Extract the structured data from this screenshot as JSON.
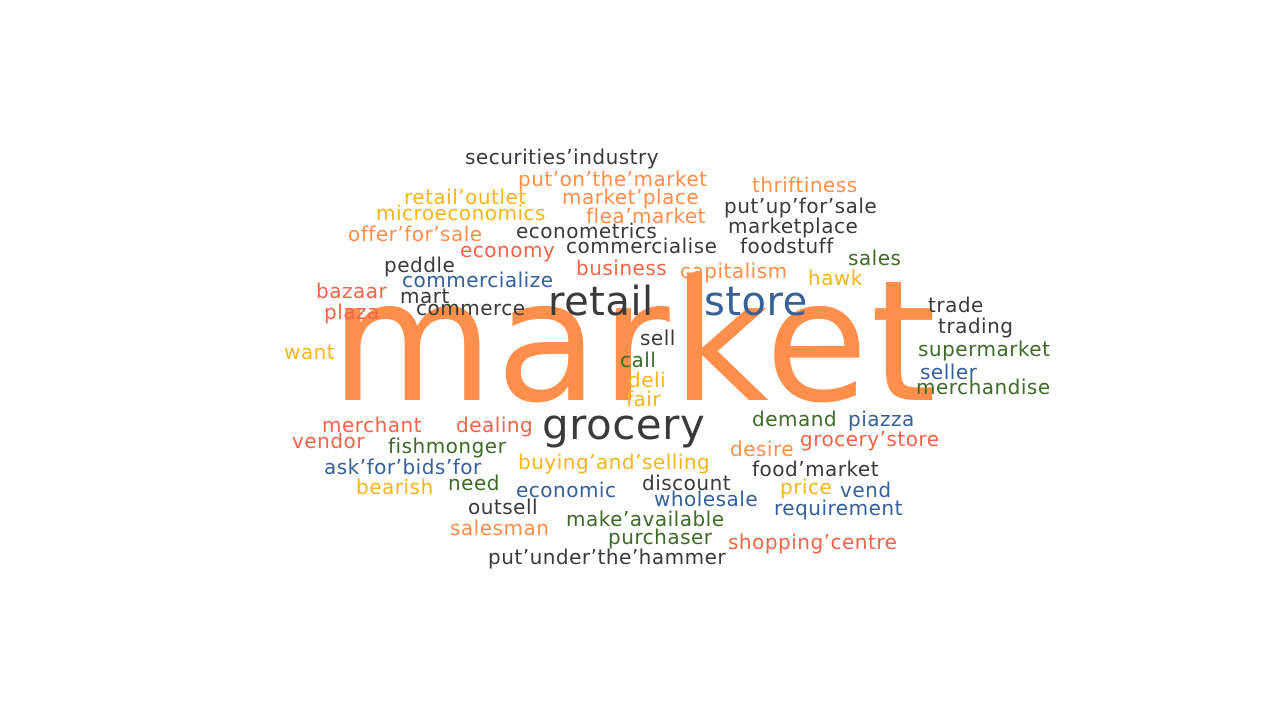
{
  "palette": {
    "orange": "#FF8F4A",
    "red": "#F26449",
    "yellow": "#F5B51F",
    "green": "#3F6B28",
    "blue": "#36609A",
    "dark": "#3A3A3A"
  },
  "words": [
    {
      "text": "market",
      "color": "orange"
    },
    {
      "text": "retail",
      "color": "dark"
    },
    {
      "text": "store",
      "color": "blue"
    },
    {
      "text": "grocery",
      "color": "dark"
    },
    {
      "text": "securities’industry",
      "color": "dark"
    },
    {
      "text": "put’on’the’market",
      "color": "orange"
    },
    {
      "text": "thriftiness",
      "color": "orange"
    },
    {
      "text": "retail’outlet",
      "color": "yellow"
    },
    {
      "text": "market’place",
      "color": "orange"
    },
    {
      "text": "microeconomics",
      "color": "yellow"
    },
    {
      "text": "flea’market",
      "color": "orange"
    },
    {
      "text": "put’up’for’sale",
      "color": "dark"
    },
    {
      "text": "offer’for’sale",
      "color": "orange"
    },
    {
      "text": "econometrics",
      "color": "dark"
    },
    {
      "text": "marketplace",
      "color": "dark"
    },
    {
      "text": "economy",
      "color": "red"
    },
    {
      "text": "commercialise",
      "color": "dark"
    },
    {
      "text": "foodstuff",
      "color": "dark"
    },
    {
      "text": "peddle",
      "color": "dark"
    },
    {
      "text": "sales",
      "color": "green"
    },
    {
      "text": "commercialize",
      "color": "blue"
    },
    {
      "text": "business",
      "color": "red"
    },
    {
      "text": "capitalism",
      "color": "orange"
    },
    {
      "text": "hawk",
      "color": "yellow"
    },
    {
      "text": "bazaar",
      "color": "red"
    },
    {
      "text": "mart",
      "color": "dark"
    },
    {
      "text": "commerce",
      "color": "dark"
    },
    {
      "text": "plaza",
      "color": "red"
    },
    {
      "text": "trade",
      "color": "dark"
    },
    {
      "text": "trading",
      "color": "dark"
    },
    {
      "text": "sell",
      "color": "dark"
    },
    {
      "text": "want",
      "color": "yellow"
    },
    {
      "text": "call",
      "color": "green"
    },
    {
      "text": "supermarket",
      "color": "green"
    },
    {
      "text": "deli",
      "color": "yellow"
    },
    {
      "text": "seller",
      "color": "blue"
    },
    {
      "text": "merchandise",
      "color": "green"
    },
    {
      "text": "fair",
      "color": "yellow"
    },
    {
      "text": "demand",
      "color": "green"
    },
    {
      "text": "piazza",
      "color": "blue"
    },
    {
      "text": "merchant",
      "color": "red"
    },
    {
      "text": "dealing",
      "color": "red"
    },
    {
      "text": "grocery’store",
      "color": "red"
    },
    {
      "text": "vendor",
      "color": "red"
    },
    {
      "text": "fishmonger",
      "color": "green"
    },
    {
      "text": "desire",
      "color": "orange"
    },
    {
      "text": "ask’for’bids’for",
      "color": "blue"
    },
    {
      "text": "buying’and’selling",
      "color": "yellow"
    },
    {
      "text": "food’market",
      "color": "dark"
    },
    {
      "text": "bearish",
      "color": "yellow"
    },
    {
      "text": "need",
      "color": "green"
    },
    {
      "text": "economic",
      "color": "blue"
    },
    {
      "text": "discount",
      "color": "dark"
    },
    {
      "text": "price",
      "color": "yellow"
    },
    {
      "text": "vend",
      "color": "blue"
    },
    {
      "text": "outsell",
      "color": "dark"
    },
    {
      "text": "wholesale",
      "color": "blue"
    },
    {
      "text": "requirement",
      "color": "blue"
    },
    {
      "text": "salesman",
      "color": "orange"
    },
    {
      "text": "make’available",
      "color": "green"
    },
    {
      "text": "purchaser",
      "color": "green"
    },
    {
      "text": "shopping’centre",
      "color": "red"
    },
    {
      "text": "put’under’the’hammer",
      "color": "dark"
    }
  ]
}
